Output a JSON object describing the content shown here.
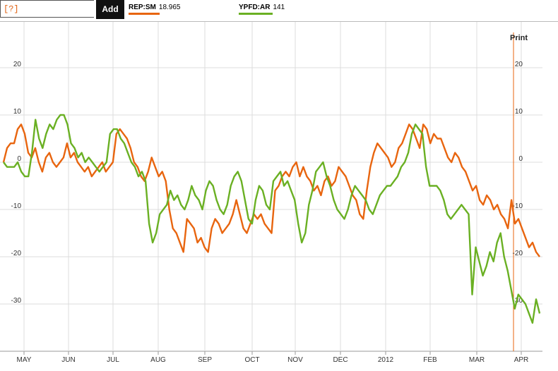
{
  "toolbar": {
    "symbol_placeholder": "[?]",
    "add_label": "Add",
    "print_label": "Print"
  },
  "legend": [
    {
      "symbol": "REP:SM",
      "value": "18.965",
      "color": "#e8650f"
    },
    {
      "symbol": "YPFD:AR",
      "value": "141",
      "color": "#6ab023"
    }
  ],
  "chart_data": {
    "type": "line",
    "ylim": [
      -35,
      28
    ],
    "y_ticks": [
      20,
      10,
      0,
      -10,
      -20,
      -30
    ],
    "y_tick_labels": [
      "20",
      "10",
      "0",
      "-10",
      "-20",
      "-30"
    ],
    "x_labels": [
      "MAY",
      "JUN",
      "JUL",
      "AUG",
      "SEP",
      "OCT",
      "NOV",
      "DEC",
      "2012",
      "FEB",
      "MAR",
      "APR"
    ],
    "grid": true,
    "series": [
      {
        "name": "REP:SM",
        "color": "#e8650f",
        "values": [
          0,
          3,
          4,
          4,
          7,
          8,
          6,
          2,
          1,
          3,
          0,
          -2,
          1,
          2,
          0,
          -1,
          0,
          1,
          4,
          1,
          2,
          0,
          -1,
          -2,
          -1,
          -3,
          -2,
          -1,
          0,
          -2,
          -1,
          0,
          6,
          7,
          6,
          5,
          3,
          0,
          -1,
          -3,
          -4,
          -2,
          1,
          -1,
          -3,
          -2,
          -4,
          -10,
          -14,
          -15,
          -17,
          -19,
          -12,
          -13,
          -14,
          -17,
          -16,
          -18,
          -19,
          -14,
          -12,
          -13,
          -15,
          -14,
          -13,
          -11,
          -8,
          -11,
          -14,
          -15,
          -13,
          -11,
          -12,
          -11,
          -13,
          -14,
          -15,
          -6,
          -5,
          -3,
          -2,
          -3,
          -1,
          0,
          -3,
          -1,
          -3,
          -4,
          -6,
          -5,
          -7,
          -4,
          -3,
          -5,
          -4,
          -1,
          -2,
          -3,
          -5,
          -7,
          -8,
          -11,
          -12,
          -6,
          -1,
          2,
          4,
          3,
          2,
          1,
          -1,
          0,
          3,
          4,
          6,
          8,
          7,
          5,
          3,
          8,
          7,
          4,
          6,
          5,
          5,
          3,
          1,
          0,
          2,
          1,
          -1,
          -2,
          -4,
          -6,
          -5,
          -8,
          -9,
          -7,
          -8,
          -10,
          -9,
          -11,
          -12,
          -14,
          -8,
          -13,
          -12,
          -14,
          -16,
          -18,
          -17,
          -19,
          -20
        ]
      },
      {
        "name": "YPFD:AR",
        "color": "#6ab023",
        "values": [
          0,
          -1,
          -1,
          -1,
          0,
          -2,
          -3,
          -3,
          2,
          9,
          5,
          3,
          6,
          8,
          7,
          9,
          10,
          10,
          8,
          4,
          3,
          1,
          2,
          0,
          1,
          0,
          -1,
          -2,
          -1,
          0,
          6,
          7,
          7,
          5,
          4,
          2,
          0,
          -1,
          -3,
          -2,
          -4,
          -13,
          -17,
          -15,
          -11,
          -10,
          -9,
          -6,
          -8,
          -7,
          -9,
          -10,
          -8,
          -5,
          -7,
          -8,
          -10,
          -6,
          -4,
          -5,
          -8,
          -10,
          -11,
          -9,
          -5,
          -3,
          -2,
          -4,
          -8,
          -12,
          -13,
          -8,
          -5,
          -6,
          -9,
          -10,
          -4,
          -3,
          -2,
          -5,
          -4,
          -6,
          -8,
          -13,
          -17,
          -15,
          -9,
          -6,
          -2,
          -1,
          0,
          -3,
          -5,
          -8,
          -10,
          -11,
          -12,
          -10,
          -7,
          -5,
          -6,
          -7,
          -8,
          -10,
          -11,
          -9,
          -7,
          -6,
          -5,
          -5,
          -4,
          -3,
          -1,
          0,
          2,
          6,
          8,
          7,
          6,
          -1,
          -5,
          -5,
          -5,
          -6,
          -8,
          -11,
          -12,
          -11,
          -10,
          -9,
          -10,
          -11,
          -28,
          -18,
          -21,
          -24,
          -22,
          -19,
          -21,
          -17,
          -15,
          -20,
          -23,
          -27,
          -31,
          -28,
          -29,
          -30,
          -32,
          -34,
          -29,
          -32
        ]
      }
    ]
  }
}
